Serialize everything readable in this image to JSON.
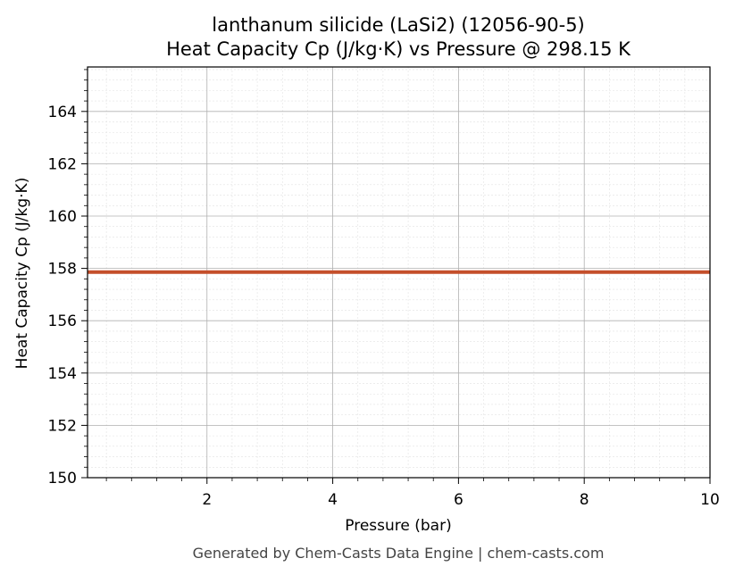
{
  "chart_data": {
    "type": "line",
    "title_line1": "lanthanum silicide (LaSi2) (12056-90-5)",
    "title_line2": "Heat Capacity Cp (J/kg·K) vs Pressure @ 298.15 K",
    "xlabel": "Pressure (bar)",
    "ylabel": "Heat Capacity Cp (J/kg·K)",
    "xlim": [
      0.1,
      10
    ],
    "ylim": [
      150,
      165.7
    ],
    "xticks": [
      2,
      4,
      6,
      8,
      10
    ],
    "yticks": [
      150,
      152,
      154,
      156,
      158,
      160,
      162,
      164
    ],
    "grid": true,
    "series": [
      {
        "color": "#c44e2a",
        "x": [
          0.1,
          1,
          2,
          3,
          4,
          5,
          6,
          7,
          8,
          9,
          10
        ],
        "y": [
          157.86,
          157.86,
          157.86,
          157.86,
          157.86,
          157.86,
          157.86,
          157.86,
          157.86,
          157.86,
          157.86
        ]
      }
    ]
  },
  "footer": "Generated by Chem-Casts Data Engine | chem-casts.com"
}
